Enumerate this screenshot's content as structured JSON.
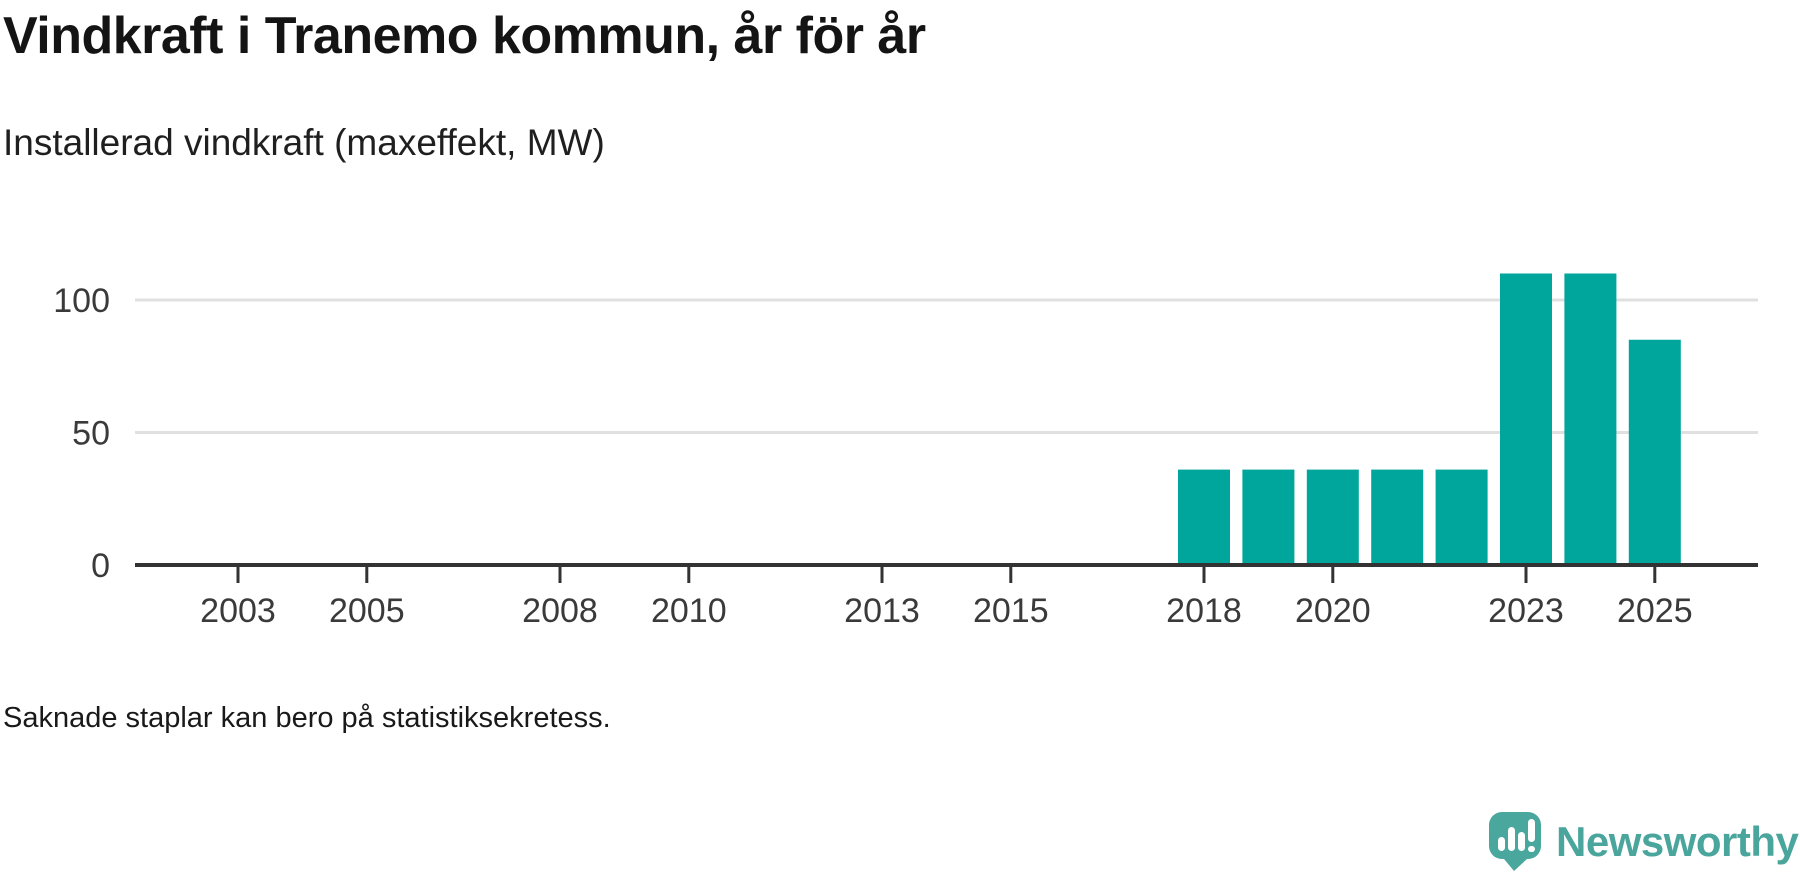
{
  "header": {
    "title": "Vindkraft i Tranemo kommun, år för år",
    "subtitle": "Installerad vindkraft (maxeffekt, MW)"
  },
  "footer": {
    "note": "Saknade staplar kan bero på statistiksekretess."
  },
  "branding": {
    "logo_text": "Newsworthy",
    "logo_icon": "speech-bubble-with-bar-chart-and-exclamation-mark"
  },
  "colors": {
    "bar": "#00a69b",
    "grid": "#e0e0e0",
    "axis": "#333333",
    "tick_label": "#3a3a3a",
    "title_text": "#141414",
    "logo_teal": "#49a79d",
    "logo_text_teal": "#4aa59d",
    "logo_glyph": "#ffffff",
    "background": "#ffffff"
  },
  "chart_data": {
    "type": "bar",
    "title": "Vindkraft i Tranemo kommun, år för år",
    "ylabel": "Installerad vindkraft (maxeffekt, MW)",
    "xlabel": "",
    "x": [
      2018,
      2019,
      2020,
      2021,
      2022,
      2023,
      2024,
      2025
    ],
    "values": [
      36,
      36,
      36,
      36,
      36,
      110,
      110,
      85
    ],
    "series_name": "Installerad vindkraft (maxeffekt, MW)",
    "x_ticks": [
      2003,
      2005,
      2008,
      2010,
      2013,
      2015,
      2018,
      2020,
      2023,
      2025
    ],
    "y_ticks": [
      0,
      50,
      100
    ],
    "ylim": [
      0,
      130
    ],
    "xlim": [
      2001.4,
      2026.6
    ],
    "grid": "horizontal-only",
    "legend": "none",
    "annotation": "Saknade staplar kan bero på statistiksekretess."
  }
}
